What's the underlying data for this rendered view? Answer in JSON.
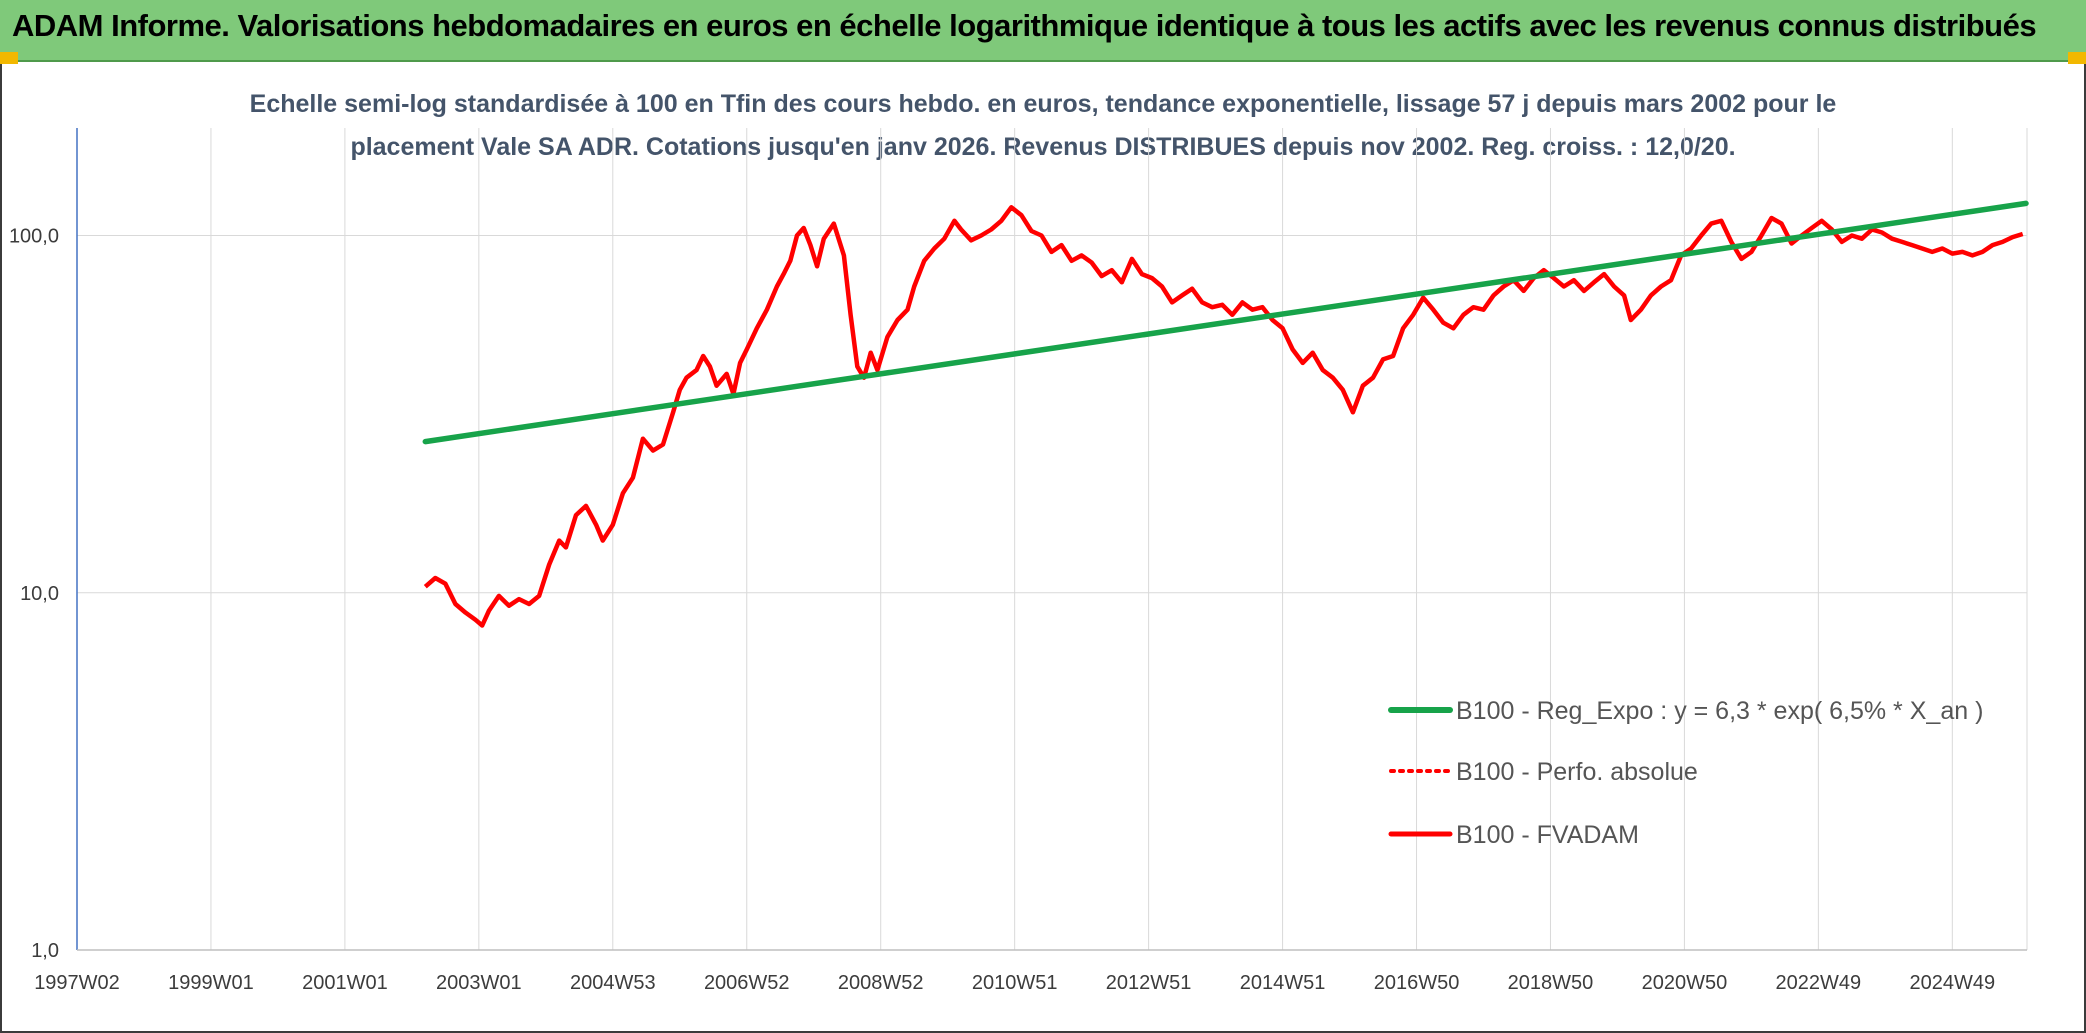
{
  "header": {
    "title": "ADAM Informe. Valorisations hebdomadaires en euros en échelle logarithmique identique à tous les actifs avec les revenus connus distribués"
  },
  "chart_data": {
    "type": "line",
    "title_line1": "Echelle semi-log standardisée à 100 en Tfin des cours hebdo. en euros, tendance exponentielle, lissage 57 j depuis mars 2002 pour le",
    "title_line2": "placement Vale SA ADR. Cotations jusqu'en janv 2026. Revenus DISTRIBUES depuis nov 2002. Reg. croiss. : 12,0/20.",
    "y_scale": "log",
    "ylim": [
      1,
      200
    ],
    "y_ticks": [
      {
        "value": 1,
        "label": "1,0"
      },
      {
        "value": 10,
        "label": "10,0"
      },
      {
        "value": 100,
        "label": "100,0"
      }
    ],
    "xlim": [
      1997.0,
      2026.1
    ],
    "x_ticks": [
      {
        "year": 1997.0,
        "label": "1997W02"
      },
      {
        "year": 1999.0,
        "label": "1999W01"
      },
      {
        "year": 2001.0,
        "label": "2001W01"
      },
      {
        "year": 2003.0,
        "label": "2003W01"
      },
      {
        "year": 2005.0,
        "label": "2004W53"
      },
      {
        "year": 2007.0,
        "label": "2006W52"
      },
      {
        "year": 2009.0,
        "label": "2008W52"
      },
      {
        "year": 2011.0,
        "label": "2010W51"
      },
      {
        "year": 2013.0,
        "label": "2012W51"
      },
      {
        "year": 2015.0,
        "label": "2014W51"
      },
      {
        "year": 2017.0,
        "label": "2016W50"
      },
      {
        "year": 2019.0,
        "label": "2018W50"
      },
      {
        "year": 2021.0,
        "label": "2020W50"
      },
      {
        "year": 2023.0,
        "label": "2022W49"
      },
      {
        "year": 2025.0,
        "label": "2024W49"
      }
    ],
    "legend_position": "bottom-right",
    "series": [
      {
        "name": "B100 - Reg_Expo : y = 6,3 * exp( 6,5% *  X_an )",
        "color": "#17a34a",
        "style": "solid",
        "points": [
          [
            2002.2,
            26.5
          ],
          [
            2026.1,
            123
          ]
        ]
      },
      {
        "name": "B100 - Perfo. absolue",
        "color": "#ff0000",
        "style": "dotted",
        "points": []
      },
      {
        "name": "B100 - FVADAM",
        "color": "#ff0000",
        "style": "solid",
        "points": [
          [
            2002.2,
            10.4
          ],
          [
            2002.35,
            11.0
          ],
          [
            2002.5,
            10.6
          ],
          [
            2002.65,
            9.3
          ],
          [
            2002.8,
            8.8
          ],
          [
            2002.95,
            8.4
          ],
          [
            2003.05,
            8.1
          ],
          [
            2003.15,
            8.9
          ],
          [
            2003.3,
            9.8
          ],
          [
            2003.45,
            9.2
          ],
          [
            2003.6,
            9.6
          ],
          [
            2003.75,
            9.3
          ],
          [
            2003.9,
            9.8
          ],
          [
            2004.05,
            12.0
          ],
          [
            2004.2,
            14.0
          ],
          [
            2004.3,
            13.4
          ],
          [
            2004.45,
            16.5
          ],
          [
            2004.6,
            17.5
          ],
          [
            2004.75,
            15.5
          ],
          [
            2004.85,
            14.0
          ],
          [
            2005.0,
            15.5
          ],
          [
            2005.15,
            19.0
          ],
          [
            2005.3,
            21.0
          ],
          [
            2005.45,
            27.0
          ],
          [
            2005.6,
            25.0
          ],
          [
            2005.75,
            26.0
          ],
          [
            2005.9,
            32.0
          ],
          [
            2006.0,
            37.0
          ],
          [
            2006.1,
            40.0
          ],
          [
            2006.25,
            42.0
          ],
          [
            2006.35,
            46.0
          ],
          [
            2006.45,
            43.0
          ],
          [
            2006.55,
            38.0
          ],
          [
            2006.7,
            41.0
          ],
          [
            2006.8,
            36.0
          ],
          [
            2006.9,
            44.0
          ],
          [
            2007.0,
            48.0
          ],
          [
            2007.15,
            55.0
          ],
          [
            2007.3,
            62.0
          ],
          [
            2007.45,
            72.0
          ],
          [
            2007.55,
            78.0
          ],
          [
            2007.65,
            85.0
          ],
          [
            2007.75,
            100.0
          ],
          [
            2007.85,
            105.0
          ],
          [
            2007.95,
            94.0
          ],
          [
            2008.05,
            82.0
          ],
          [
            2008.15,
            98.0
          ],
          [
            2008.3,
            108.0
          ],
          [
            2008.45,
            88.0
          ],
          [
            2008.55,
            60.0
          ],
          [
            2008.65,
            43.0
          ],
          [
            2008.75,
            40.0
          ],
          [
            2008.85,
            47.0
          ],
          [
            2008.95,
            42.0
          ],
          [
            2009.1,
            52.0
          ],
          [
            2009.25,
            58.0
          ],
          [
            2009.4,
            62.0
          ],
          [
            2009.5,
            72.0
          ],
          [
            2009.65,
            85.0
          ],
          [
            2009.8,
            92.0
          ],
          [
            2009.95,
            98.0
          ],
          [
            2010.1,
            110.0
          ],
          [
            2010.2,
            104.0
          ],
          [
            2010.35,
            97.0
          ],
          [
            2010.5,
            100.0
          ],
          [
            2010.65,
            104.0
          ],
          [
            2010.8,
            110.0
          ],
          [
            2010.95,
            120.0
          ],
          [
            2011.1,
            114.0
          ],
          [
            2011.25,
            103.0
          ],
          [
            2011.4,
            100.0
          ],
          [
            2011.55,
            90.0
          ],
          [
            2011.7,
            94.0
          ],
          [
            2011.85,
            85.0
          ],
          [
            2012.0,
            88.0
          ],
          [
            2012.15,
            84.0
          ],
          [
            2012.3,
            77.0
          ],
          [
            2012.45,
            80.0
          ],
          [
            2012.6,
            74.0
          ],
          [
            2012.75,
            86.0
          ],
          [
            2012.9,
            78.0
          ],
          [
            2013.05,
            76.0
          ],
          [
            2013.2,
            72.0
          ],
          [
            2013.35,
            65.0
          ],
          [
            2013.5,
            68.0
          ],
          [
            2013.65,
            71.0
          ],
          [
            2013.8,
            65.0
          ],
          [
            2013.95,
            63.0
          ],
          [
            2014.1,
            64.0
          ],
          [
            2014.25,
            60.0
          ],
          [
            2014.4,
            65.0
          ],
          [
            2014.55,
            62.0
          ],
          [
            2014.7,
            63.0
          ],
          [
            2014.85,
            58.0
          ],
          [
            2015.0,
            55.0
          ],
          [
            2015.15,
            48.0
          ],
          [
            2015.3,
            44.0
          ],
          [
            2015.45,
            47.0
          ],
          [
            2015.6,
            42.0
          ],
          [
            2015.75,
            40.0
          ],
          [
            2015.9,
            37.0
          ],
          [
            2016.05,
            32.0
          ],
          [
            2016.2,
            38.0
          ],
          [
            2016.35,
            40.0
          ],
          [
            2016.5,
            45.0
          ],
          [
            2016.65,
            46.0
          ],
          [
            2016.8,
            55.0
          ],
          [
            2016.95,
            60.0
          ],
          [
            2017.1,
            67.0
          ],
          [
            2017.25,
            62.0
          ],
          [
            2017.4,
            57.0
          ],
          [
            2017.55,
            55.0
          ],
          [
            2017.7,
            60.0
          ],
          [
            2017.85,
            63.0
          ],
          [
            2018.0,
            62.0
          ],
          [
            2018.15,
            68.0
          ],
          [
            2018.3,
            72.0
          ],
          [
            2018.45,
            75.0
          ],
          [
            2018.6,
            70.0
          ],
          [
            2018.75,
            76.0
          ],
          [
            2018.9,
            80.0
          ],
          [
            2019.05,
            76.0
          ],
          [
            2019.2,
            72.0
          ],
          [
            2019.35,
            75.0
          ],
          [
            2019.5,
            70.0
          ],
          [
            2019.65,
            74.0
          ],
          [
            2019.8,
            78.0
          ],
          [
            2019.95,
            72.0
          ],
          [
            2020.1,
            68.0
          ],
          [
            2020.2,
            58.0
          ],
          [
            2020.35,
            62.0
          ],
          [
            2020.5,
            68.0
          ],
          [
            2020.65,
            72.0
          ],
          [
            2020.8,
            75.0
          ],
          [
            2020.95,
            88.0
          ],
          [
            2021.1,
            92.0
          ],
          [
            2021.25,
            100.0
          ],
          [
            2021.4,
            108.0
          ],
          [
            2021.55,
            110.0
          ],
          [
            2021.7,
            96.0
          ],
          [
            2021.85,
            86.0
          ],
          [
            2022.0,
            90.0
          ],
          [
            2022.15,
            100.0
          ],
          [
            2022.3,
            112.0
          ],
          [
            2022.45,
            108.0
          ],
          [
            2022.6,
            95.0
          ],
          [
            2022.75,
            100.0
          ],
          [
            2022.9,
            105.0
          ],
          [
            2023.05,
            110.0
          ],
          [
            2023.2,
            104.0
          ],
          [
            2023.35,
            96.0
          ],
          [
            2023.5,
            100.0
          ],
          [
            2023.65,
            98.0
          ],
          [
            2023.8,
            104.0
          ],
          [
            2023.95,
            102.0
          ],
          [
            2024.1,
            98.0
          ],
          [
            2024.25,
            96.0
          ],
          [
            2024.4,
            94.0
          ],
          [
            2024.55,
            92.0
          ],
          [
            2024.7,
            90.0
          ],
          [
            2024.85,
            92.0
          ],
          [
            2025.0,
            89.0
          ],
          [
            2025.15,
            90.0
          ],
          [
            2025.3,
            88.0
          ],
          [
            2025.45,
            90.0
          ],
          [
            2025.6,
            94.0
          ],
          [
            2025.75,
            96.0
          ],
          [
            2025.9,
            99.0
          ],
          [
            2026.05,
            101.0
          ]
        ]
      }
    ]
  }
}
